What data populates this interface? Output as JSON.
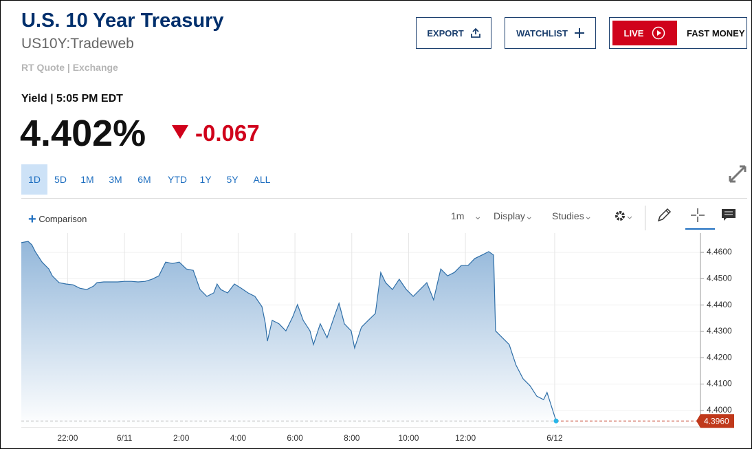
{
  "header": {
    "title": "U.S. 10 Year Treasury",
    "symbol": "US10Y:Tradeweb",
    "source": "RT Quote | Exchange"
  },
  "quote": {
    "label": "Yield | 5:05 PM EDT",
    "last": "4.402%",
    "change": "-0.067"
  },
  "buttons": {
    "export": "EXPORT",
    "watchlist": "WATCHLIST",
    "live": "LIVE",
    "fast_money": "FAST MONEY"
  },
  "ranges": [
    "1D",
    "5D",
    "1M",
    "3M",
    "6M",
    "YTD",
    "1Y",
    "5Y",
    "ALL"
  ],
  "toolbar": {
    "comparison": "Comparison",
    "interval": "1m",
    "display": "Display",
    "studies": "Studies"
  },
  "chart_data": {
    "type": "line",
    "color": "#2f6fa8",
    "grid": true,
    "x": [
      -3.63,
      -3.39,
      -3.26,
      -3.14,
      -2.9,
      -2.66,
      -2.54,
      -2.3,
      -2.06,
      -1.81,
      -1.57,
      -1.33,
      -1.09,
      -0.97,
      -0.73,
      -0.48,
      -0.24,
      0,
      0.24,
      0.48,
      0.73,
      0.97,
      1.21,
      1.45,
      1.69,
      1.93,
      2.18,
      2.42,
      2.66,
      2.9,
      3.14,
      3.26,
      3.39,
      3.63,
      3.87,
      4.11,
      4.35,
      4.59,
      4.84,
      4.96,
      5.03,
      5.2,
      5.44,
      5.68,
      5.92,
      6.09,
      6.29,
      6.53,
      6.65,
      6.89,
      7.13,
      7.38,
      7.55,
      7.74,
      7.98,
      8.1,
      8.34,
      8.58,
      8.83,
      9.02,
      9.19,
      9.43,
      9.67,
      9.92,
      10.16,
      10.4,
      10.64,
      10.88,
      11.13,
      11.37,
      11.61,
      11.85,
      12.09,
      12.33,
      12.58,
      12.82,
      12.99,
      13.06,
      13.3,
      13.54,
      13.66,
      13.78,
      14.03,
      14.27,
      14.51,
      14.75,
      14.87,
      14.99,
      15.19
    ],
    "values": [
      4.4637,
      4.4642,
      4.4629,
      4.4603,
      4.4563,
      4.4537,
      4.4511,
      4.4485,
      4.448,
      4.4477,
      4.4464,
      4.4459,
      4.4472,
      4.4485,
      4.4488,
      4.4488,
      4.4488,
      4.449,
      4.449,
      4.4488,
      4.449,
      4.4498,
      4.4511,
      4.4563,
      4.4558,
      4.4563,
      4.4537,
      4.4532,
      4.4459,
      4.4433,
      4.4446,
      4.448,
      4.4459,
      4.4446,
      4.448,
      4.4464,
      4.4446,
      4.4433,
      4.4394,
      4.4329,
      4.4263,
      4.4342,
      4.4329,
      4.4302,
      4.4355,
      4.4402,
      4.4342,
      4.4302,
      4.425,
      4.4329,
      4.4276,
      4.4355,
      4.4407,
      4.4329,
      4.4302,
      4.4237,
      4.4316,
      4.4342,
      4.4368,
      4.4524,
      4.4485,
      4.4459,
      4.4498,
      4.4459,
      4.4433,
      4.4459,
      4.4485,
      4.442,
      4.4537,
      4.4511,
      4.4524,
      4.455,
      4.455,
      4.4577,
      4.459,
      4.4603,
      4.459,
      4.4302,
      4.4276,
      4.425,
      4.4211,
      4.4172,
      4.412,
      4.4094,
      4.4054,
      4.4041,
      4.4068,
      4.4028,
      4.396
    ],
    "value_labels": [
      null,
      null,
      null,
      null,
      null,
      null,
      null,
      null,
      null,
      null,
      null,
      null,
      null,
      null,
      null,
      null,
      null,
      null,
      null,
      null,
      null,
      null,
      null,
      null,
      null,
      null,
      null,
      null,
      null,
      null,
      null,
      null,
      null,
      null,
      null,
      null,
      null,
      null,
      null,
      null,
      null,
      null,
      null,
      null,
      null,
      null,
      null,
      null,
      null,
      null,
      null,
      null,
      null,
      null,
      null,
      null,
      null,
      null,
      null,
      null,
      null,
      null,
      null,
      null,
      null,
      null,
      null,
      null,
      null,
      null,
      null,
      null,
      null,
      null,
      null,
      null,
      null,
      null,
      null,
      null,
      null,
      null,
      null,
      null,
      null,
      null,
      null,
      null,
      "4.3960"
    ],
    "xlim": [
      -3.63,
      20.27
    ],
    "ylim": [
      4.3937,
      4.4655
    ],
    "xticks": [
      {
        "value": -2,
        "label": "22:00"
      },
      {
        "value": 0,
        "label": "6/11"
      },
      {
        "value": 2,
        "label": "2:00"
      },
      {
        "value": 4,
        "label": "4:00"
      },
      {
        "value": 6,
        "label": "6:00"
      },
      {
        "value": 8,
        "label": "8:00"
      },
      {
        "value": 10,
        "label": "10:00"
      },
      {
        "value": 12,
        "label": "12:00"
      },
      {
        "value": 15.14,
        "label": "6/12"
      }
    ],
    "yticks": [
      {
        "value": 4.46,
        "label": "4.4600"
      },
      {
        "value": 4.45,
        "label": "4.4500"
      },
      {
        "value": 4.44,
        "label": "4.4400"
      },
      {
        "value": 4.43,
        "label": "4.4300"
      },
      {
        "value": 4.42,
        "label": "4.4200"
      },
      {
        "value": 4.41,
        "label": "4.4100"
      },
      {
        "value": 4.4,
        "label": "4.4000"
      }
    ]
  }
}
